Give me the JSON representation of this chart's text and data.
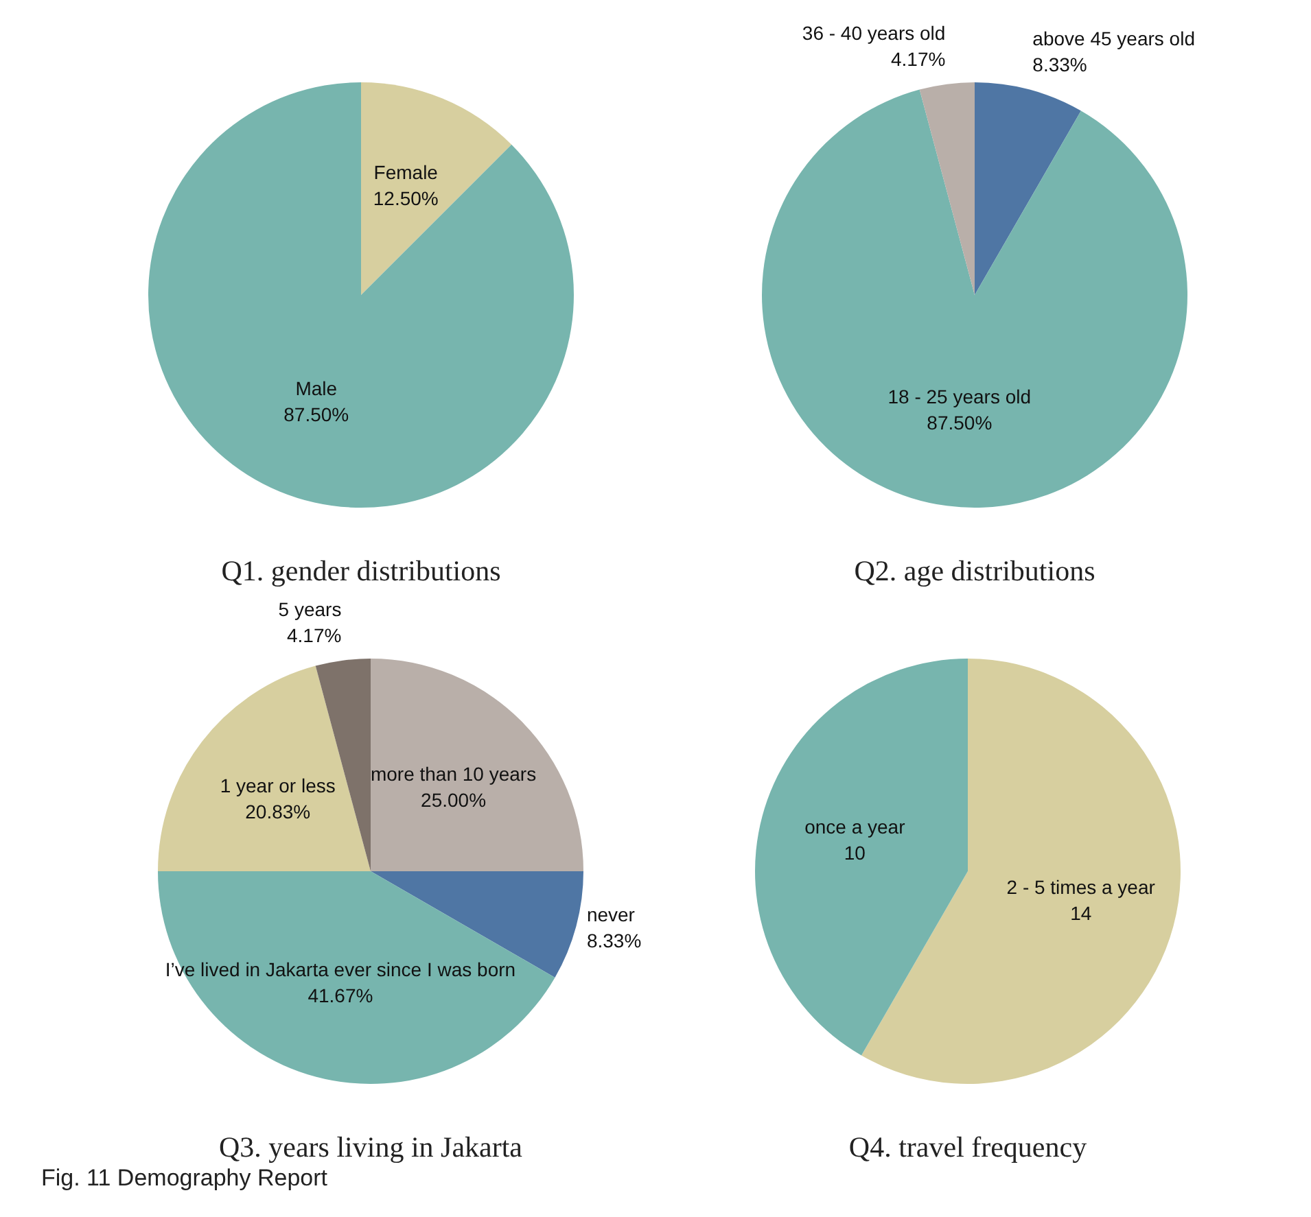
{
  "chart_data": [
    {
      "type": "pie",
      "title": "Q1. gender distributions",
      "categories": [
        "Female",
        "Male"
      ],
      "values": [
        12.5,
        87.5
      ],
      "colors": [
        "#d7cf9f",
        "#77b5ae"
      ],
      "value_labels": [
        "12.50%",
        "87.50%"
      ]
    },
    {
      "type": "pie",
      "title": "Q2. age distributions",
      "categories": [
        "above 45 years old",
        "18 - 25 years old",
        "36 - 40 years old"
      ],
      "values": [
        8.33,
        87.5,
        4.17
      ],
      "colors": [
        "#4f76a4",
        "#77b5ae",
        "#b9afa9"
      ],
      "value_labels": [
        "8.33%",
        "87.50%",
        "4.17%"
      ]
    },
    {
      "type": "pie",
      "title": "Q3. years living in Jakarta",
      "categories": [
        "more than 10 years",
        "never",
        "I’ve lived in Jakarta ever since I was born",
        "1 year or less",
        "5 years"
      ],
      "values": [
        25,
        8.33,
        41.67,
        20.83,
        4.17
      ],
      "colors": [
        "#b9afa9",
        "#4f76a4",
        "#77b5ae",
        "#d7cf9f",
        "#7e726a"
      ],
      "value_labels": [
        "25.00%",
        "8.33%",
        "41.67%",
        "20.83%",
        "4.17%"
      ],
      "annotations": [
        "Fig. 11 Demography Report"
      ]
    },
    {
      "type": "pie",
      "title": "Q4. travel frequency",
      "categories": [
        "2 - 5 times a year",
        "once a year"
      ],
      "values": [
        14,
        10
      ],
      "colors": [
        "#d7cf9f",
        "#77b5ae"
      ],
      "data_labels": true
    }
  ]
}
